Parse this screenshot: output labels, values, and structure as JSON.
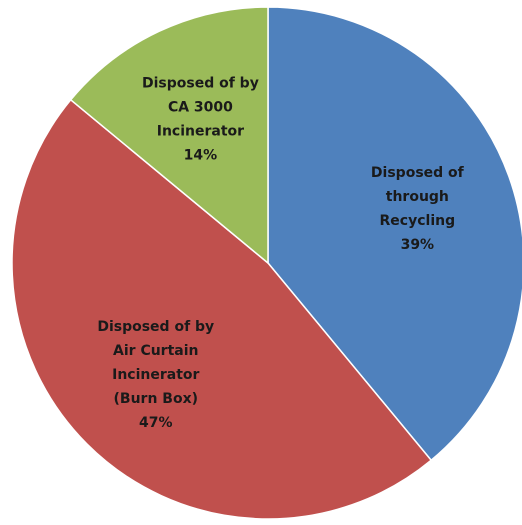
{
  "chart_data": {
    "type": "pie",
    "categories": [
      [
        "Disposed of",
        "through",
        "Recycling"
      ],
      [
        "Disposed of by",
        "Air Curtain",
        "Incinerator",
        "(Burn Box)"
      ],
      [
        "Disposed of by",
        "CA 3000",
        "Incinerator"
      ]
    ],
    "values": [
      39,
      47,
      14
    ],
    "value_labels": [
      "39%",
      "47%",
      "14%"
    ],
    "colors": [
      "#4f81bd",
      "#c0504d",
      "#9bbb59"
    ]
  }
}
